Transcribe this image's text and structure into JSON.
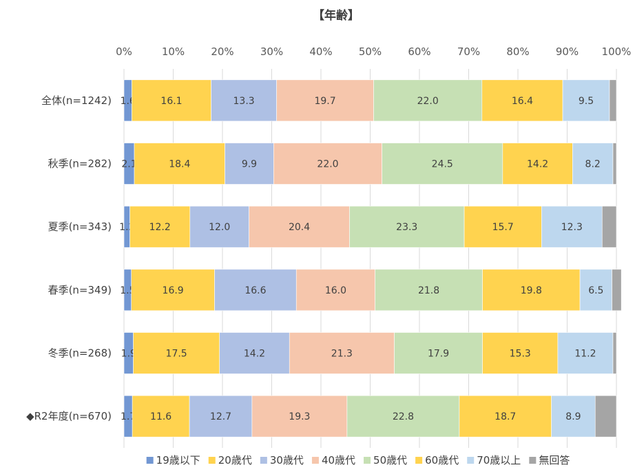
{
  "chart_data": {
    "type": "bar",
    "orientation": "horizontal",
    "stacked": "percent",
    "title": "【年齢】",
    "xlim": [
      0,
      100
    ],
    "x_ticks": [
      "0%",
      "10%",
      "20%",
      "30%",
      "40%",
      "50%",
      "60%",
      "70%",
      "80%",
      "90%",
      "100%"
    ],
    "grid": true,
    "legend_position": "bottom",
    "categories": [
      "全体(n=1242)",
      "秋季(n=282)",
      "夏季(n=343)",
      "春季(n=349)",
      "冬季(n=268)",
      "◆R2年度(n=670)"
    ],
    "series": [
      {
        "name": "19歳以下",
        "color": "#7297D3",
        "values": [
          1.6,
          2.1,
          1.2,
          1.5,
          1.9,
          1.7
        ]
      },
      {
        "name": "20歳代",
        "color": "#FFD34F",
        "values": [
          16.1,
          18.4,
          12.2,
          16.9,
          17.5,
          11.6
        ]
      },
      {
        "name": "30歳代",
        "color": "#AEC0E4",
        "values": [
          13.3,
          9.9,
          12.0,
          16.6,
          14.2,
          12.7
        ]
      },
      {
        "name": "40歳代",
        "color": "#F6C6AC",
        "values": [
          19.7,
          22.0,
          20.4,
          16.0,
          21.3,
          19.3
        ]
      },
      {
        "name": "50歳代",
        "color": "#C6E0B4",
        "values": [
          22.0,
          24.5,
          23.3,
          21.8,
          17.9,
          22.8
        ]
      },
      {
        "name": "60歳代",
        "color": "#FFD34F",
        "values": [
          16.4,
          14.2,
          15.7,
          19.8,
          15.3,
          18.7
        ]
      },
      {
        "name": "70歳以上",
        "color": "#BDD7EE",
        "values": [
          9.5,
          8.2,
          12.3,
          6.5,
          11.2,
          8.9
        ]
      },
      {
        "name": "無回答",
        "color": "#A5A5A5",
        "values": [
          1.4,
          0.7,
          2.9,
          1.9,
          0.7,
          4.3
        ]
      }
    ],
    "label_series_count": 7
  }
}
